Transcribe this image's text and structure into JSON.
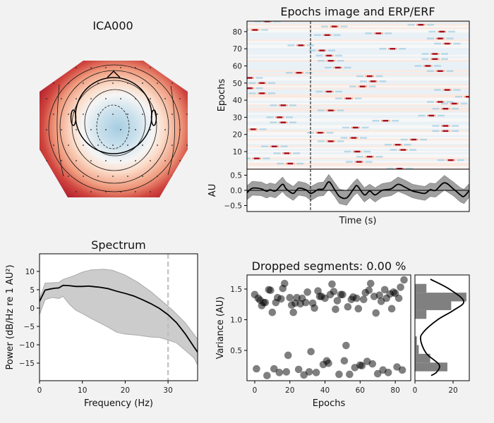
{
  "figure": {
    "background": "#f2f2f2",
    "topomap_title": "ICA000",
    "epochs_title": "Epochs image and ERP/ERF",
    "epochs_ylabel": "Epochs",
    "erp_ylabel": "AU",
    "erp_xlabel": "Time (s)",
    "spectrum_title": "Spectrum",
    "spectrum_xlabel": "Frequency (Hz)",
    "spectrum_ylabel": "Power (dB/Hz re 1 AU²)",
    "dropped_title": "Dropped segments: 0.00 %",
    "variance_ylabel": "Variance (AU)",
    "variance_xlabel": "Epochs"
  },
  "chart_data": [
    {
      "type": "heatmap",
      "name": "topomap",
      "colormap": "RdBu_r",
      "center_color": "#a6cde2",
      "edge_color": "#b2182b"
    },
    {
      "type": "heatmap",
      "name": "epochs_image",
      "ylabel": "Epochs",
      "yticks": [
        10,
        20,
        30,
        40,
        50,
        60,
        70,
        80
      ],
      "ylim": [
        0,
        86
      ],
      "n_epochs": 86,
      "n_samples": 126,
      "event_sample": 36,
      "peak_color": "#a50f26",
      "flank_color": "#92c5de",
      "peaks": [
        [
          86,
          11
        ],
        [
          81,
          4
        ],
        [
          72,
          30
        ],
        [
          56,
          29
        ],
        [
          50,
          8
        ],
        [
          53,
          1
        ],
        [
          47,
          1
        ],
        [
          44,
          8
        ],
        [
          37,
          20
        ],
        [
          30,
          18
        ],
        [
          27,
          20
        ],
        [
          23,
          3
        ],
        [
          13,
          15
        ],
        [
          9,
          22
        ],
        [
          6,
          5
        ],
        [
          3,
          24
        ],
        [
          83,
          49
        ],
        [
          78,
          45
        ],
        [
          69,
          42
        ],
        [
          66,
          46
        ],
        [
          63,
          47
        ],
        [
          59,
          51
        ],
        [
          21,
          41
        ],
        [
          16,
          47
        ],
        [
          79,
          74
        ],
        [
          70,
          82
        ],
        [
          54,
          69
        ],
        [
          51,
          71
        ],
        [
          48,
          65
        ],
        [
          45,
          46
        ],
        [
          41,
          57
        ],
        [
          34,
          47
        ],
        [
          28,
          78
        ],
        [
          24,
          61
        ],
        [
          18,
          60
        ],
        [
          17,
          94
        ],
        [
          14,
          85
        ],
        [
          11,
          88
        ],
        [
          10,
          62
        ],
        [
          7,
          69
        ],
        [
          4,
          63
        ],
        [
          0,
          86
        ],
        [
          84,
          98
        ],
        [
          80,
          110
        ],
        [
          76,
          109
        ],
        [
          73,
          113
        ],
        [
          67,
          106
        ],
        [
          64,
          106
        ],
        [
          60,
          102
        ],
        [
          57,
          109
        ],
        [
          46,
          113
        ],
        [
          42,
          125
        ],
        [
          39,
          109
        ],
        [
          38,
          117
        ],
        [
          35,
          112
        ],
        [
          31,
          104
        ],
        [
          25,
          112
        ],
        [
          22,
          112
        ],
        [
          5,
          115
        ]
      ]
    },
    {
      "type": "line",
      "name": "erp",
      "ylabel": "AU",
      "xlabel": "Time (s)",
      "yticks": [
        -0.5,
        0.0,
        0.5
      ],
      "ylim": [
        -0.7,
        0.69
      ],
      "band_halfwidth": 0.22,
      "mean": [
        [
          0,
          -0.08
        ],
        [
          3,
          0.07
        ],
        [
          8,
          0.05
        ],
        [
          11,
          -0.03
        ],
        [
          13,
          0.02
        ],
        [
          16,
          -0.02
        ],
        [
          20,
          0.2
        ],
        [
          22,
          0.05
        ],
        [
          26,
          -0.1
        ],
        [
          29,
          0.07
        ],
        [
          33,
          0.02
        ],
        [
          36,
          -0.1
        ],
        [
          40,
          0.03
        ],
        [
          43,
          0.05
        ],
        [
          46,
          0.28
        ],
        [
          49,
          0.05
        ],
        [
          52,
          -0.2
        ],
        [
          56,
          -0.25
        ],
        [
          60,
          0.05
        ],
        [
          62,
          0.15
        ],
        [
          66,
          -0.15
        ],
        [
          69,
          -0.02
        ],
        [
          72,
          -0.15
        ],
        [
          76,
          0.0
        ],
        [
          81,
          0.05
        ],
        [
          85,
          0.2
        ],
        [
          89,
          0.1
        ],
        [
          93,
          -0.02
        ],
        [
          96,
          -0.06
        ],
        [
          100,
          -0.1
        ],
        [
          103,
          0.02
        ],
        [
          106,
          0.0
        ],
        [
          111,
          0.25
        ],
        [
          116,
          0.05
        ],
        [
          120,
          -0.15
        ],
        [
          122,
          -0.2
        ],
        [
          125,
          0.0
        ]
      ]
    },
    {
      "type": "area",
      "name": "spectrum",
      "title": "Spectrum",
      "xlabel": "Frequency (Hz)",
      "ylabel": "Power (dB/Hz re 1 AU²)",
      "xlim": [
        0,
        36.9
      ],
      "ylim": [
        -19.8,
        14.8
      ],
      "xticks": [
        0,
        10,
        20,
        30
      ],
      "yticks": [
        -15,
        -10,
        -5,
        0,
        5,
        10
      ],
      "cutoff_hz": 30,
      "mean": [
        [
          0,
          1.8
        ],
        [
          1.3,
          4.9
        ],
        [
          2.5,
          5.2
        ],
        [
          3.5,
          5.4
        ],
        [
          4.5,
          5.5
        ],
        [
          5.5,
          6.2
        ],
        [
          7,
          6.1
        ],
        [
          8.5,
          5.9
        ],
        [
          10,
          5.9
        ],
        [
          11.5,
          6.0
        ],
        [
          13,
          5.8
        ],
        [
          14,
          5.7
        ],
        [
          16,
          5.3
        ],
        [
          18,
          4.6
        ],
        [
          20,
          4.0
        ],
        [
          22,
          3.3
        ],
        [
          24,
          2.3
        ],
        [
          26,
          1.2
        ],
        [
          28,
          -0.1
        ],
        [
          30,
          -1.8
        ],
        [
          32,
          -4
        ],
        [
          34,
          -7
        ],
        [
          36,
          -10.5
        ],
        [
          36.9,
          -12
        ]
      ],
      "upper": [
        [
          0,
          2.5
        ],
        [
          1.3,
          6.8
        ],
        [
          4.5,
          7.0
        ],
        [
          5.5,
          7.8
        ],
        [
          8,
          8.8
        ],
        [
          10,
          9.8
        ],
        [
          12,
          10.4
        ],
        [
          15,
          10.6
        ],
        [
          17,
          10.3
        ],
        [
          20,
          9.0
        ],
        [
          23,
          7.0
        ],
        [
          26,
          4.5
        ],
        [
          29,
          1.5
        ],
        [
          31,
          -0.5
        ],
        [
          34,
          -4
        ],
        [
          36.9,
          -8.5
        ]
      ],
      "lower": [
        [
          0,
          -1.8
        ],
        [
          1.3,
          2.3
        ],
        [
          3,
          2.9
        ],
        [
          4.5,
          2.6
        ],
        [
          5.5,
          3.2
        ],
        [
          7,
          1
        ],
        [
          8.5,
          -0.6
        ],
        [
          10,
          -1.5
        ],
        [
          12,
          -2.8
        ],
        [
          14,
          -4
        ],
        [
          16,
          -5.2
        ],
        [
          18,
          -6.6
        ],
        [
          20,
          -7.1
        ],
        [
          23,
          -7.4
        ],
        [
          26,
          -7.9
        ],
        [
          28,
          -8
        ],
        [
          30,
          -8.7
        ],
        [
          32,
          -9.5
        ],
        [
          34,
          -11.5
        ],
        [
          36,
          -13.5
        ],
        [
          36.9,
          -15.5
        ]
      ]
    },
    {
      "type": "scatter",
      "name": "epoch_variance",
      "title": "Dropped segments: 0.00 %",
      "xlabel": "Epochs",
      "ylabel": "Variance (AU)",
      "xlim": [
        -4.4,
        88.8
      ],
      "ylim": [
        0.006,
        1.73
      ],
      "xticks": [
        0,
        20,
        40,
        60,
        80
      ],
      "yticks": [
        0.5,
        1.0,
        1.5
      ],
      "values": [
        1.41,
        0.2,
        1.35,
        1.32,
        1.23,
        1.28,
        1.28,
        0.09,
        1.49,
        1.48,
        1.12,
        0.2,
        1.28,
        1.36,
        0.14,
        1.34,
        1.51,
        1.59,
        0.15,
        0.42,
        1.36,
        1.24,
        1.12,
        1.27,
        1.36,
        0.19,
        1.26,
        1.35,
        0.1,
        1.28,
        1.45,
        0.15,
        0.48,
        1.27,
        1.19,
        0.14,
        1.47,
        1.38,
        1.38,
        0.27,
        1.35,
        0.33,
        0.29,
        1.41,
        1.58,
        1.46,
        1.17,
        1.31,
        0.11,
        1.41,
        1.41,
        0.33,
        0.58,
        1.21,
        0.11,
        1.33,
        1.37,
        0.22,
        1.35,
        1.18,
        0.26,
        0.25,
        1.33,
        1.44,
        0.32,
        1.48,
        1.59,
        0.28,
        1.38,
        1.11,
        0.12,
        1.4,
        1.3,
        0.18,
        1.49,
        1.35,
        0.14,
        1.42,
        1.18,
        1.45,
        1.43,
        0.23,
        1.35,
        1.53,
        0.18,
        1.65
      ]
    },
    {
      "type": "bar",
      "name": "variance_histogram",
      "orientation": "horizontal",
      "xlim": [
        0,
        28.5
      ],
      "xticks": [
        0,
        20
      ],
      "bin_range": [
        0.159,
        1.584
      ],
      "counts": [
        17,
        8,
        2,
        1,
        0,
        0,
        6,
        19,
        27,
        6
      ],
      "kde": [
        [
          1.66,
          8.1
        ],
        [
          1.5,
          18
        ],
        [
          1.3,
          25.6
        ],
        [
          1.15,
          20
        ],
        [
          1.0,
          11.9
        ],
        [
          0.8,
          4.5
        ],
        [
          0.67,
          3.0
        ],
        [
          0.45,
          6
        ],
        [
          0.27,
          12.6
        ],
        [
          0.15,
          11.5
        ],
        [
          0.09,
          8.5
        ]
      ]
    }
  ]
}
